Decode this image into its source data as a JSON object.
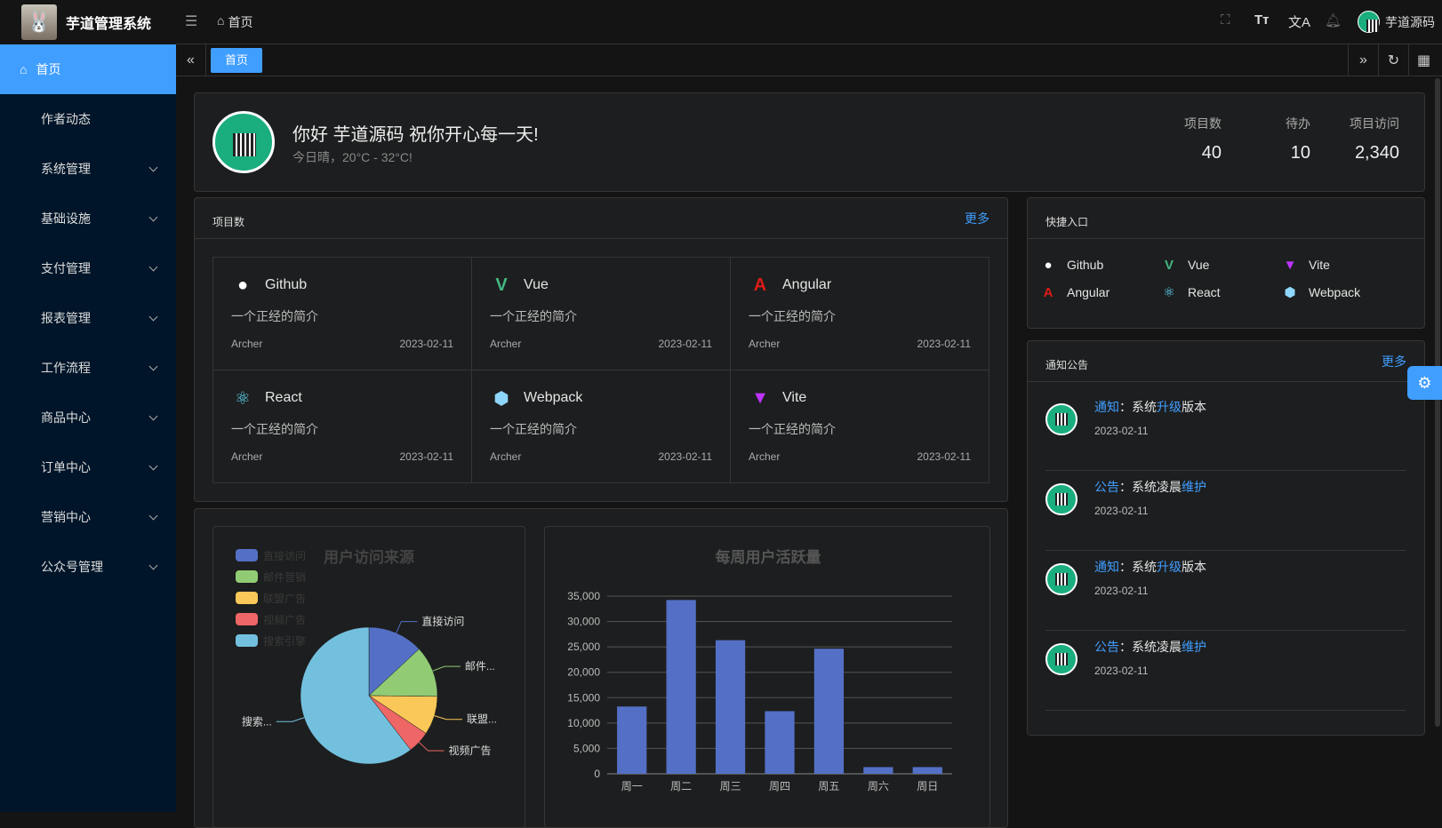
{
  "header": {
    "brand": "芋道管理系统",
    "breadcrumb": "首页",
    "user": "芋道源码",
    "icons": [
      "fullscreen-icon",
      "font-size-icon",
      "translate-icon",
      "bell-icon"
    ]
  },
  "sidebar": {
    "items": [
      {
        "label": "首页",
        "active": true
      },
      {
        "label": "作者动态"
      },
      {
        "label": "系统管理",
        "expandable": true
      },
      {
        "label": "基础设施",
        "expandable": true
      },
      {
        "label": "支付管理",
        "expandable": true
      },
      {
        "label": "报表管理",
        "expandable": true
      },
      {
        "label": "工作流程",
        "expandable": true
      },
      {
        "label": "商品中心",
        "expandable": true
      },
      {
        "label": "订单中心",
        "expandable": true
      },
      {
        "label": "营销中心",
        "expandable": true
      },
      {
        "label": "公众号管理",
        "expandable": true
      }
    ]
  },
  "tabs": {
    "active": "首页"
  },
  "welcome": {
    "greeting": "你好 芋道源码 祝你开心每一天!",
    "weather": "今日晴，20°C - 32°C!",
    "stats": [
      {
        "label": "项目数",
        "value": "40"
      },
      {
        "label": "待办",
        "value": "10"
      },
      {
        "label": "项目访问",
        "value": "2,340"
      }
    ]
  },
  "projects": {
    "title": "项目数",
    "more": "更多",
    "items": [
      {
        "name": "Github",
        "desc": "一个正经的简介",
        "author": "Archer",
        "date": "2023-02-11",
        "icon": "github-icon",
        "color": "#ffffff"
      },
      {
        "name": "Vue",
        "desc": "一个正经的简介",
        "author": "Archer",
        "date": "2023-02-11",
        "icon": "vue-icon",
        "color": "#42b883"
      },
      {
        "name": "Angular",
        "desc": "一个正经的简介",
        "author": "Archer",
        "date": "2023-02-11",
        "icon": "angular-icon",
        "color": "#dd1b16"
      },
      {
        "name": "React",
        "desc": "一个正经的简介",
        "author": "Archer",
        "date": "2023-02-11",
        "icon": "react-icon",
        "color": "#61dafb"
      },
      {
        "name": "Webpack",
        "desc": "一个正经的简介",
        "author": "Archer",
        "date": "2023-02-11",
        "icon": "webpack-icon",
        "color": "#8ed6fb"
      },
      {
        "name": "Vite",
        "desc": "一个正经的简介",
        "author": "Archer",
        "date": "2023-02-11",
        "icon": "vite-icon",
        "color": "#bd34fe"
      }
    ]
  },
  "quick": {
    "title": "快捷入口",
    "items": [
      {
        "name": "Github",
        "icon": "github-icon",
        "color": "#ffffff"
      },
      {
        "name": "Vue",
        "icon": "vue-icon",
        "color": "#42b883"
      },
      {
        "name": "Vite",
        "icon": "vite-icon",
        "color": "#bd34fe"
      },
      {
        "name": "Angular",
        "icon": "angular-icon",
        "color": "#dd1b16"
      },
      {
        "name": "React",
        "icon": "react-icon",
        "color": "#61dafb"
      },
      {
        "name": "Webpack",
        "icon": "webpack-icon",
        "color": "#8ed6fb"
      }
    ]
  },
  "notices": {
    "title": "通知公告",
    "more": "更多",
    "items": [
      {
        "type": "通知",
        "sep": "：",
        "pre": "系统",
        "hl": "升级",
        "post": "版本",
        "date": "2023-02-11"
      },
      {
        "type": "公告",
        "sep": "：",
        "pre": "系统凌晨",
        "hl": "维护",
        "post": "",
        "date": "2023-02-11"
      },
      {
        "type": "通知",
        "sep": "：",
        "pre": "系统",
        "hl": "升级",
        "post": "版本",
        "date": "2023-02-11"
      },
      {
        "type": "公告",
        "sep": "：",
        "pre": "系统凌晨",
        "hl": "维护",
        "post": "",
        "date": "2023-02-11"
      }
    ]
  },
  "chart_data": [
    {
      "type": "pie",
      "title": "用户访问来源",
      "legend": "top-left",
      "categories": [
        "直接访问",
        "邮件营销",
        "联盟广告",
        "视频广告",
        "搜索引擎"
      ],
      "labels": [
        "直接访问",
        "邮件...",
        "联盟...",
        "视频广告",
        "搜索..."
      ],
      "values": [
        335,
        310,
        234,
        135,
        1548
      ],
      "colors": [
        "#5470c6",
        "#91cc75",
        "#fac858",
        "#ee6666",
        "#73c0de"
      ]
    },
    {
      "type": "bar",
      "title": "每周用户活跃量",
      "categories": [
        "周一",
        "周二",
        "周三",
        "周四",
        "周五",
        "周六",
        "周日"
      ],
      "values": [
        13253,
        34235,
        26321,
        12340,
        24643,
        1322,
        1324
      ],
      "ylim": [
        0,
        35000
      ],
      "yticks": [
        "0",
        "5,000",
        "10,000",
        "15,000",
        "20,000",
        "25,000",
        "30,000",
        "35,000"
      ],
      "grid": true,
      "color": "#5470c6"
    }
  ]
}
